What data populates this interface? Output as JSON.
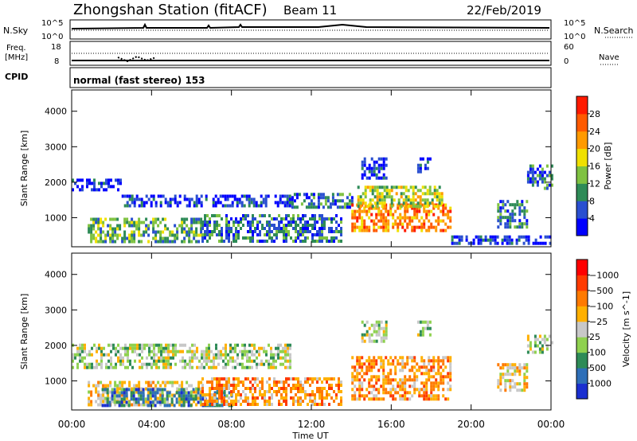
{
  "header": {
    "station": "Zhongshan Station (fitACF)",
    "beam": "Beam 11",
    "date": "22/Feb/2019"
  },
  "noise_panel": {
    "left_label": "N.Sky",
    "right_label": "N.Search",
    "tick_top": "10^5",
    "tick_bottom": "10^0"
  },
  "freq_panel": {
    "left_label_1": "Freq.",
    "left_label_2": "[MHz]",
    "right_label": "Nave",
    "left_ticks": [
      "18",
      "8"
    ],
    "right_ticks": [
      "60",
      "0"
    ]
  },
  "cpid": {
    "label": "CPID",
    "value": "normal (fast stereo) 153"
  },
  "chart_data": [
    {
      "type": "heatmap",
      "title": "",
      "xlabel": "Time UT",
      "ylabel": "Slant Range [km]",
      "x_ticks": [
        "00:00",
        "04:00",
        "08:00",
        "12:00",
        "16:00",
        "20:00",
        "00:00"
      ],
      "y_ticks": [
        1000,
        2000,
        3000,
        4000
      ],
      "ylim": [
        180,
        4600
      ],
      "colorbar": {
        "label": "Power [dB]",
        "ticks": [
          "4",
          "8",
          "12",
          "16",
          "20",
          "24",
          "28"
        ],
        "colors": [
          "#0000ff",
          "#2a4fd0",
          "#2e8b57",
          "#7fc241",
          "#f0e000",
          "#ff9a00",
          "#ff5a00",
          "#ff1a00"
        ]
      },
      "echo_regions": [
        {
          "t0": 0.0,
          "t1": 2.5,
          "r0": 1750,
          "r1": 2100,
          "level": 1
        },
        {
          "t0": 2.5,
          "t1": 11.0,
          "r0": 1350,
          "r1": 1650,
          "level": 1
        },
        {
          "t0": 11.0,
          "t1": 14.0,
          "r0": 1300,
          "r1": 1700,
          "level": 2
        },
        {
          "t0": 0.8,
          "t1": 6.5,
          "r0": 350,
          "r1": 1000,
          "level": 3
        },
        {
          "t0": 6.5,
          "t1": 13.5,
          "r0": 300,
          "r1": 1100,
          "level": 2
        },
        {
          "t0": 14.0,
          "t1": 19.0,
          "r0": 600,
          "r1": 1400,
          "level": 6
        },
        {
          "t0": 14.3,
          "t1": 18.5,
          "r0": 1300,
          "r1": 1900,
          "level": 4
        },
        {
          "t0": 14.5,
          "t1": 15.8,
          "r0": 2100,
          "r1": 2700,
          "level": 1
        },
        {
          "t0": 17.3,
          "t1": 17.9,
          "r0": 2300,
          "r1": 2700,
          "level": 1
        },
        {
          "t0": 21.3,
          "t1": 22.8,
          "r0": 700,
          "r1": 1500,
          "level": 2
        },
        {
          "t0": 22.8,
          "t1": 24.0,
          "r0": 1800,
          "r1": 2500,
          "level": 2
        },
        {
          "t0": 19.0,
          "t1": 24.0,
          "r0": 250,
          "r1": 500,
          "level": 1
        }
      ]
    },
    {
      "type": "heatmap",
      "title": "",
      "xlabel": "Time UT",
      "ylabel": "Slant Range [km]",
      "x_ticks": [
        "00:00",
        "04:00",
        "08:00",
        "12:00",
        "16:00",
        "20:00",
        "00:00"
      ],
      "y_ticks": [
        1000,
        2000,
        3000,
        4000
      ],
      "ylim": [
        180,
        4600
      ],
      "colorbar": {
        "label": "Velocity [m s^-1]",
        "ticks": [
          "1000",
          "500",
          "100",
          "25",
          "−25",
          "−100",
          "−500",
          "−1000"
        ],
        "colors": [
          "#1a2fd0",
          "#2e6fb8",
          "#2e8b57",
          "#8fd14f",
          "#c8c8c8",
          "#ffb000",
          "#ff7a00",
          "#ff3a00",
          "#ff0000"
        ]
      },
      "echo_regions": [
        {
          "t0": 0.0,
          "t1": 11.0,
          "r0": 1350,
          "r1": 2050,
          "level": 4
        },
        {
          "t0": 0.8,
          "t1": 6.5,
          "r0": 350,
          "r1": 1000,
          "level": 5
        },
        {
          "t0": 1.5,
          "t1": 8.0,
          "r0": 300,
          "r1": 800,
          "level": 2
        },
        {
          "t0": 6.5,
          "t1": 13.5,
          "r0": 300,
          "r1": 1100,
          "level": 6
        },
        {
          "t0": 14.0,
          "t1": 19.0,
          "r0": 500,
          "r1": 1700,
          "level": 6
        },
        {
          "t0": 14.5,
          "t1": 15.8,
          "r0": 2100,
          "r1": 2700,
          "level": 4
        },
        {
          "t0": 17.3,
          "t1": 17.9,
          "r0": 2300,
          "r1": 2700,
          "level": 4
        },
        {
          "t0": 21.3,
          "t1": 22.8,
          "r0": 700,
          "r1": 1500,
          "level": 5
        },
        {
          "t0": 22.8,
          "t1": 24.0,
          "r0": 1800,
          "r1": 2300,
          "level": 4
        }
      ]
    }
  ]
}
